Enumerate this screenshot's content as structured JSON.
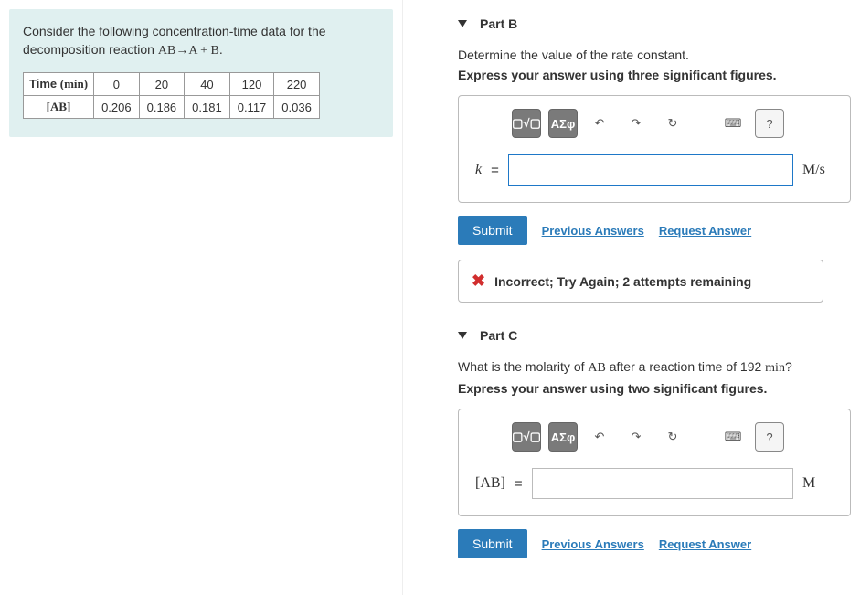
{
  "problem": {
    "intro_a": "Consider the following concentration-time data for the",
    "intro_b": "decomposition reaction ",
    "reaction": "AB→A + B",
    "table": {
      "row1_label": "Time (min)",
      "row2_label": "[AB]",
      "times": [
        "0",
        "20",
        "40",
        "120",
        "220"
      ],
      "conc": [
        "0.206",
        "0.186",
        "0.181",
        "0.117",
        "0.036"
      ]
    }
  },
  "partB": {
    "title": "Part B",
    "prompt": "Determine the value of the rate constant.",
    "instruction": "Express your answer using three significant figures.",
    "var_label": "k",
    "equals": "=",
    "unit": "M/s",
    "submit": "Submit",
    "prev_answers": "Previous Answers",
    "request_answer": "Request Answer",
    "feedback": "Incorrect; Try Again; 2 attempts remaining",
    "toolbar": {
      "templates": "▢√▢",
      "greek": "ΑΣφ",
      "undo": "↶",
      "redo": "↷",
      "reset": "↻",
      "keyboard": "⌨",
      "help": "?"
    }
  },
  "partC": {
    "title": "Part C",
    "prompt_a": "What is the molarity of ",
    "prompt_var": "AB",
    "prompt_b": " after a reaction time of 192 ",
    "prompt_unit": "min",
    "prompt_c": "?",
    "instruction": "Express your answer using two significant figures.",
    "var_label": "[AB]",
    "equals": "=",
    "unit": "M",
    "submit": "Submit",
    "prev_answers": "Previous Answers",
    "request_answer": "Request Answer",
    "toolbar": {
      "templates": "▢√▢",
      "greek": "ΑΣφ",
      "undo": "↶",
      "redo": "↷",
      "reset": "↻",
      "keyboard": "⌨",
      "help": "?"
    }
  },
  "colors": {
    "accent": "#2b7bb9",
    "panel_bg": "#e0f0f0",
    "error": "#d12e2e",
    "tool_gray": "#7a7a7a"
  }
}
